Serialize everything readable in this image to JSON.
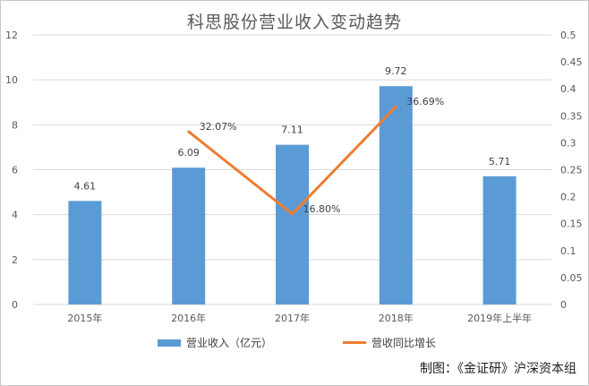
{
  "title": "科思股份营业收入变动趋势",
  "source": "制图：《金证研》沪深资本组",
  "chart_data": {
    "type": "bar",
    "categories": [
      "2015年",
      "2016年",
      "2017年",
      "2018年",
      "2019年上半年"
    ],
    "series": [
      {
        "name": "营业收入（亿元）",
        "type": "bar",
        "axis": "left",
        "color": "#5b9bd5",
        "values": [
          4.61,
          6.09,
          7.11,
          9.72,
          5.71
        ],
        "labels": [
          "4.61",
          "6.09",
          "7.11",
          "9.72",
          "5.71"
        ]
      },
      {
        "name": "营收同比增长",
        "type": "line",
        "axis": "right",
        "color": "#ed7d31",
        "values": [
          null,
          0.3207,
          0.168,
          0.3669,
          null
        ],
        "labels": [
          "",
          "32.07%",
          "16.80%",
          "36.69%",
          ""
        ]
      }
    ],
    "y_left": {
      "min": 0,
      "max": 12,
      "ticks": [
        "0",
        "2",
        "4",
        "6",
        "8",
        "10",
        "12"
      ]
    },
    "y_right": {
      "min": 0,
      "max": 0.5,
      "ticks": [
        "0",
        "0.05",
        "0.1",
        "0.15",
        "0.2",
        "0.25",
        "0.3",
        "0.35",
        "0.4",
        "0.45",
        "0.5"
      ]
    },
    "grid": true,
    "legend": "bottom"
  }
}
